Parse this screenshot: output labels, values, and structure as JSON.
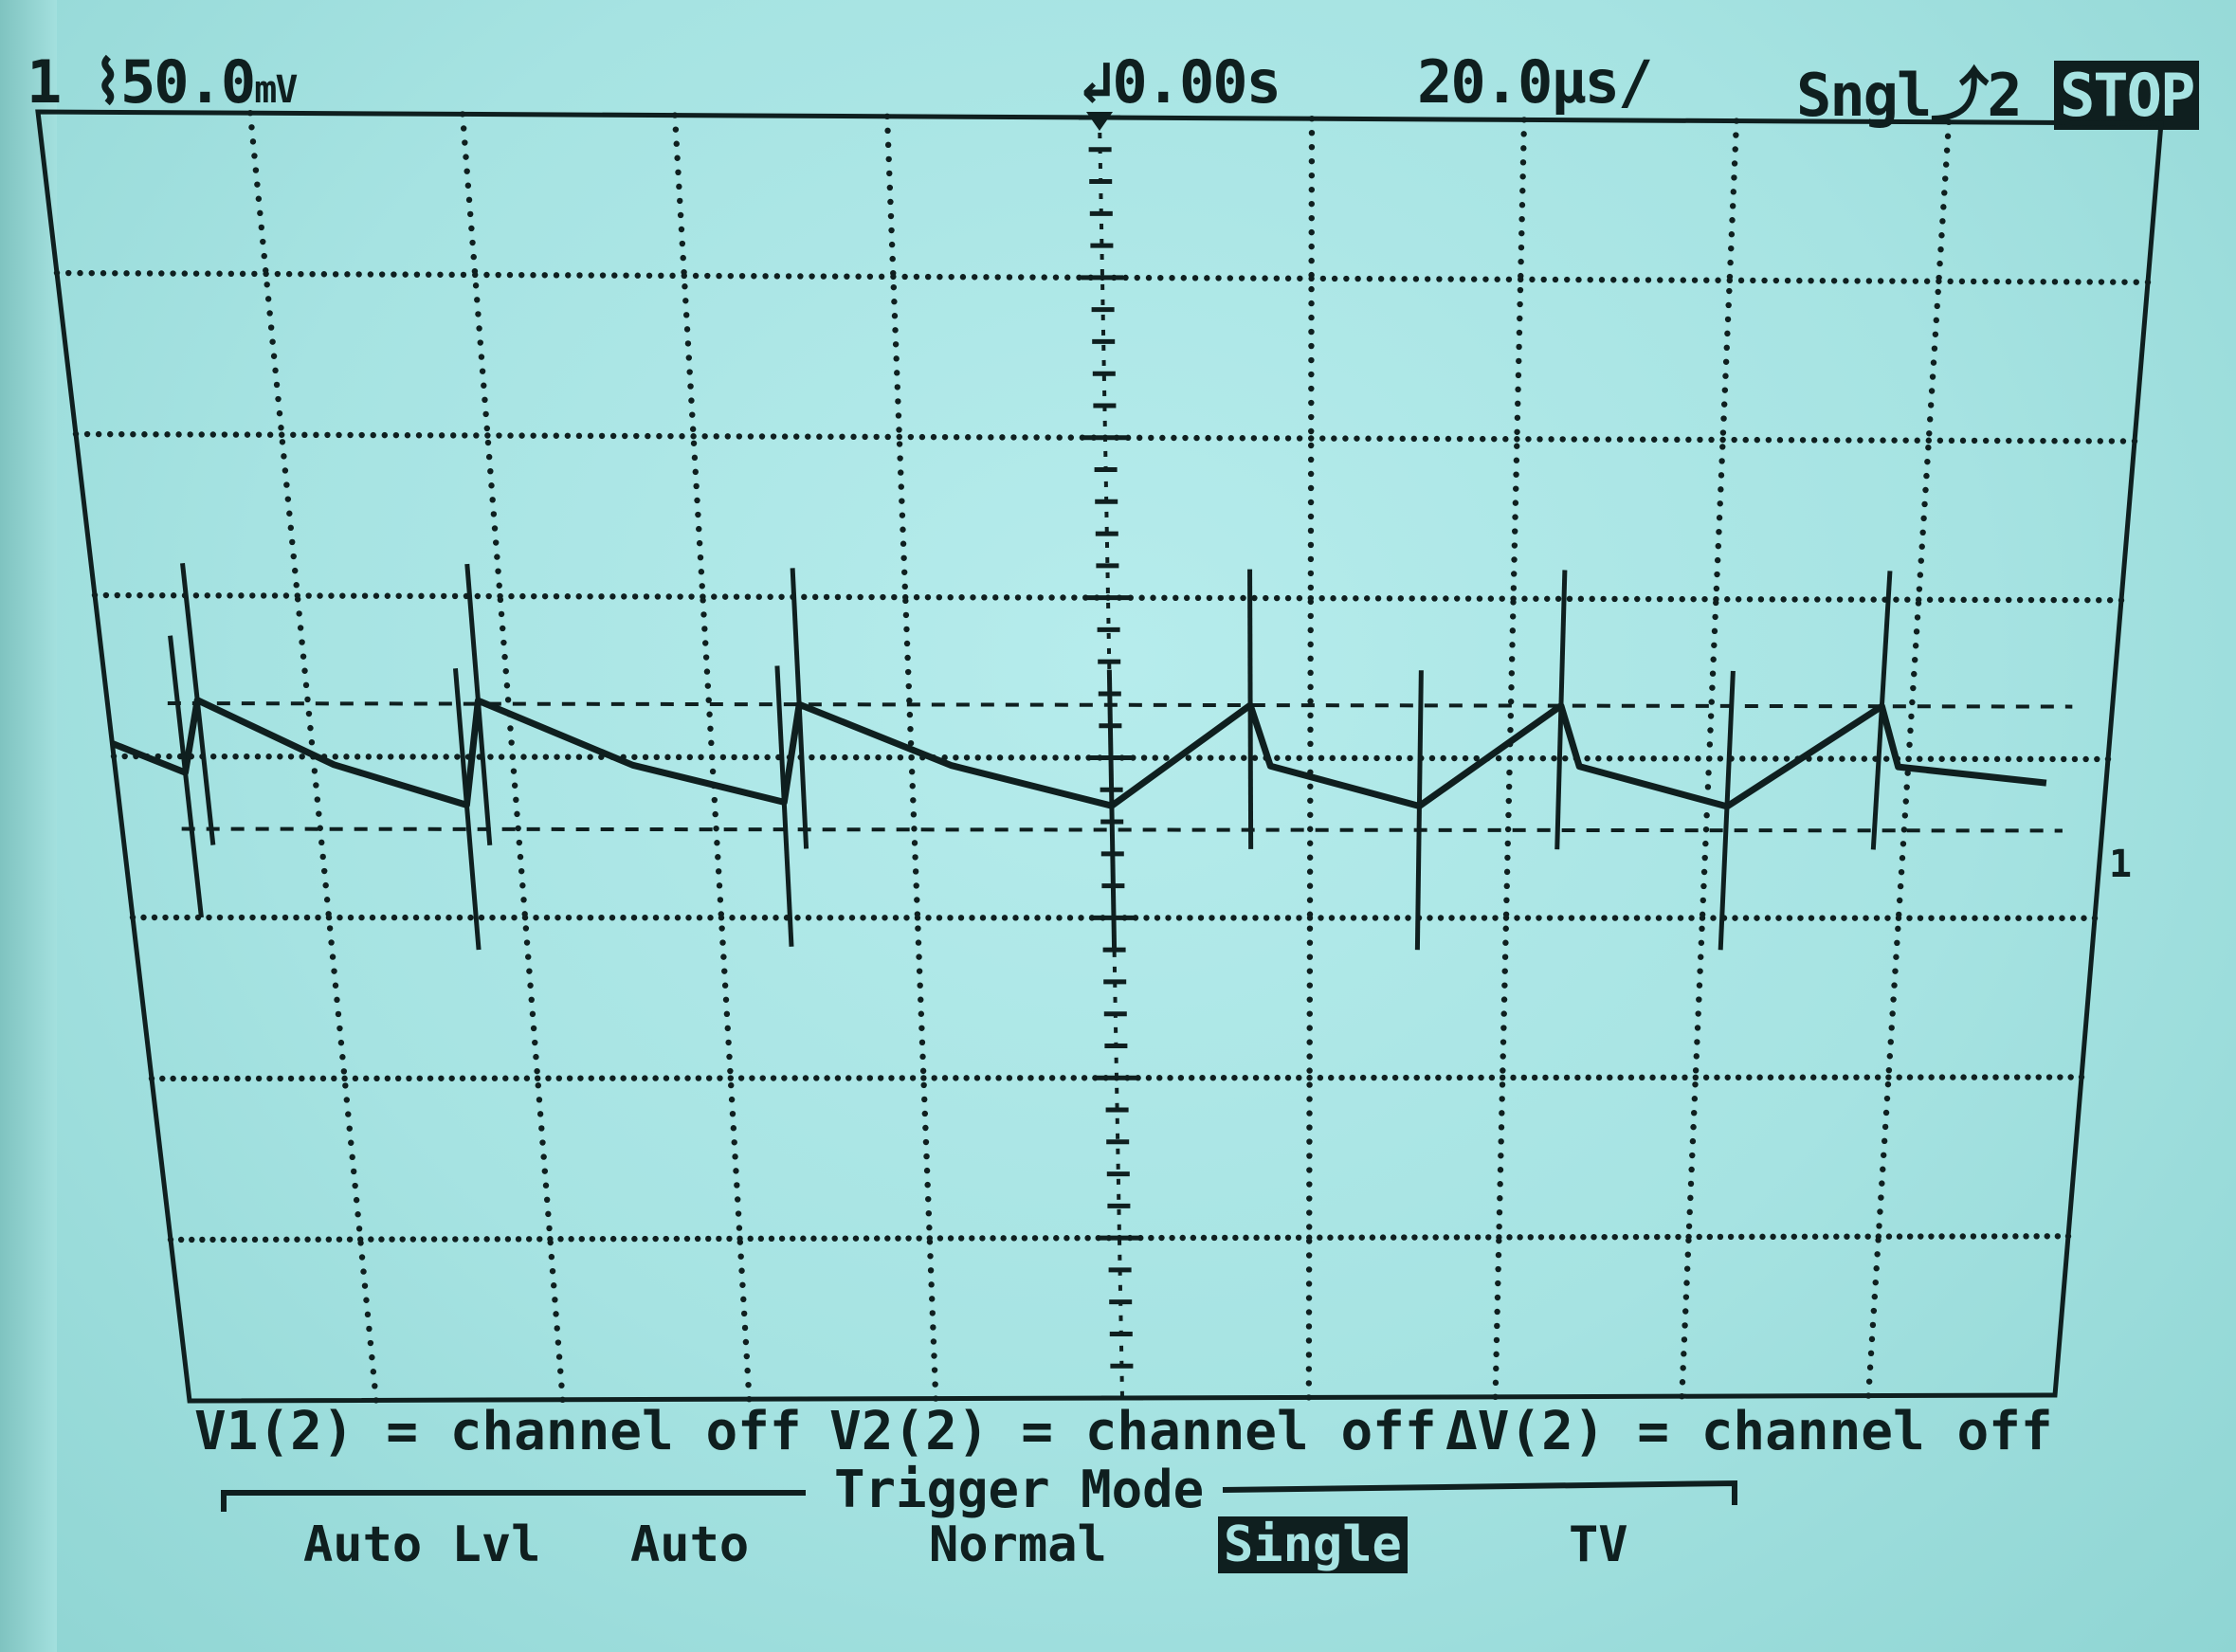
{
  "status_bar": {
    "channel": "1",
    "volts_per_div": "50.0",
    "volts_unit": "mV",
    "trigger_position": "0.00s",
    "time_per_div": "20.0",
    "time_unit": "µs/",
    "acquisition": "Sngl",
    "trigger_source": "2",
    "run_state": "STOP"
  },
  "measurements": [
    "V1(2) = channel off",
    "V2(2) = channel off",
    "ΔV(2) = channel off"
  ],
  "trigger_menu": {
    "title": "Trigger Mode",
    "options": [
      "Auto Lvl",
      "Auto",
      "Normal",
      "Single",
      "TV"
    ],
    "selected": "Single"
  },
  "trace_marker": "1",
  "colors": {
    "screen": "#a6e3e2",
    "trace": "#0f1f1f"
  },
  "chart_data": {
    "type": "line",
    "grid": true,
    "x_divisions": 10,
    "y_divisions": 8,
    "x_range_div": [
      0,
      10
    ],
    "y_range_div": [
      0,
      8
    ],
    "series": [
      {
        "x": [
          0.0,
          0.35,
          0.45,
          1.1,
          1.75,
          1.85,
          2.6,
          3.35,
          3.45,
          4.2,
          5.0,
          5.7,
          5.8,
          6.55,
          7.25,
          7.35,
          8.1,
          8.85,
          8.95,
          9.7
        ],
        "y": [
          4.08,
          3.9,
          4.35,
          3.95,
          3.7,
          4.35,
          3.95,
          3.72,
          4.33,
          3.95,
          3.7,
          4.33,
          3.95,
          3.7,
          4.33,
          3.95,
          3.7,
          4.33,
          3.95,
          3.85
        ]
      }
    ]
  }
}
